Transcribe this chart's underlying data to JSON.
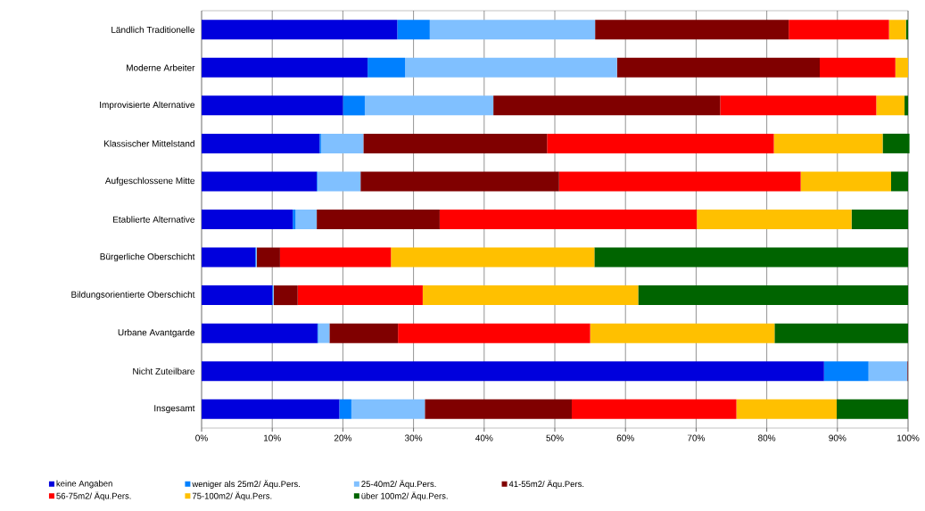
{
  "chart_data": {
    "type": "bar",
    "orientation": "horizontal",
    "stacked": true,
    "grid": "x",
    "legend": "bottom",
    "categories": [
      "Ländlich Traditionelle",
      "Moderne Arbeiter",
      "Improvisierte Alternative",
      "Klassischer Mittelstand",
      "Aufgeschlossene Mitte",
      "Etablierte Alternative",
      "Bürgerliche Oberschicht",
      "Bildungsorientierte Oberschicht",
      "Urbane Avantgarde",
      "Nicht Zuteilbare",
      "Insgesamt"
    ],
    "xlim": [
      0,
      100
    ],
    "xticks": [
      {
        "value": 0,
        "label": "0%"
      },
      {
        "value": 10,
        "label": "10%"
      },
      {
        "value": 20,
        "label": "20%"
      },
      {
        "value": 30,
        "label": "30%"
      },
      {
        "value": 40,
        "label": "40%"
      },
      {
        "value": 50,
        "label": "50%"
      },
      {
        "value": 60,
        "label": "60%"
      },
      {
        "value": 70,
        "label": "70%"
      },
      {
        "value": 80,
        "label": "80%"
      },
      {
        "value": 90,
        "label": "90%"
      },
      {
        "value": 100,
        "label": "100%"
      }
    ],
    "series": [
      {
        "name": "keine Angaben",
        "color": "#0000dd",
        "values": [
          27.7,
          23.5,
          20.0,
          16.7,
          16.3,
          12.9,
          7.6,
          10.0,
          16.4,
          88.1,
          19.5
        ]
      },
      {
        "name": "weniger als 25m2/ Äqu.Pers.",
        "color": "#0080ff",
        "values": [
          4.6,
          5.3,
          3.1,
          0.2,
          0.1,
          0.4,
          0.1,
          0.1,
          0.1,
          6.3,
          1.7
        ]
      },
      {
        "name": "25-40m2/ Äqu.Pers.",
        "color": "#80c0ff",
        "values": [
          23.4,
          30.0,
          18.2,
          6.0,
          6.1,
          3.0,
          0.1,
          0.1,
          1.6,
          5.5,
          10.4
        ]
      },
      {
        "name": "41-55m2/ Äqu.Pers.",
        "color": "#800000",
        "values": [
          27.4,
          28.7,
          32.1,
          26.0,
          28.1,
          17.4,
          3.3,
          3.4,
          9.7,
          0.1,
          20.8
        ]
      },
      {
        "name": "56-75m2/ Äqu.Pers.",
        "color": "#ff0000",
        "values": [
          14.2,
          10.7,
          22.1,
          32.1,
          34.2,
          36.4,
          15.7,
          17.7,
          27.2,
          0,
          23.3
        ]
      },
      {
        "name": "75-100m2/ Äqu.Pers.",
        "color": "#ffc000",
        "values": [
          2.4,
          1.8,
          4.0,
          15.4,
          12.8,
          21.9,
          28.8,
          30.5,
          26.1,
          0,
          14.2
        ]
      },
      {
        "name": "über 100m2/ Äqu.Pers.",
        "color": "#006400",
        "values": [
          0.3,
          0,
          0.5,
          3.8,
          2.4,
          8.0,
          44.4,
          38.2,
          18.9,
          0,
          10.1
        ]
      }
    ]
  }
}
